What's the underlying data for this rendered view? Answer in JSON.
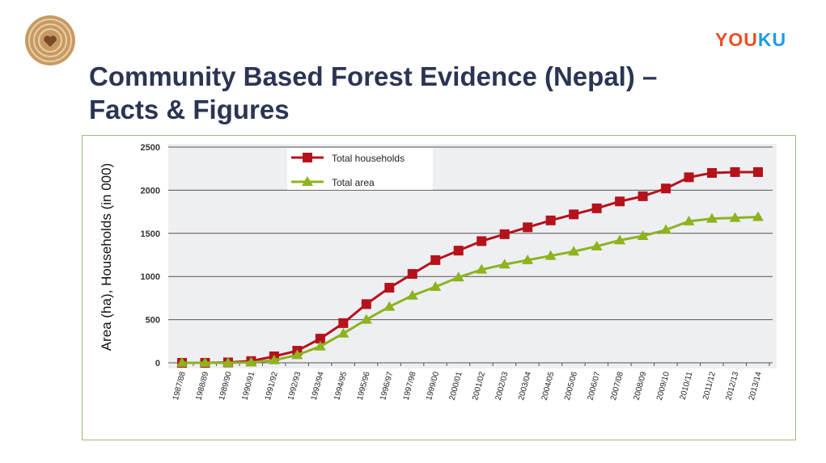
{
  "slide": {
    "title_line1": "Community Based Forest Evidence (Nepal) –",
    "title_line2": "Facts & Figures",
    "watermark": "YOUKU"
  },
  "chart_data": {
    "type": "line",
    "title": "",
    "xlabel": "",
    "ylabel": "Area (ha), Households (in 000)",
    "ylim": [
      0,
      2500
    ],
    "yticks": [
      0,
      500,
      1000,
      1500,
      2000,
      2500
    ],
    "grid": true,
    "legend_position": "top-center",
    "categories": [
      "1987/88",
      "1988/89",
      "1989/90",
      "1990/91",
      "1991/92",
      "1992/93",
      "1993/94",
      "1994/95",
      "1995/96",
      "1996/97",
      "1997/98",
      "1999/00",
      "2000/01",
      "2001/02",
      "2002/03",
      "2003/04",
      "2004/05",
      "2005/06",
      "2006/07",
      "2007/08",
      "2008/09",
      "2009/10",
      "2010/11",
      "2011/12",
      "2012/13",
      "2013/14"
    ],
    "series": [
      {
        "name": "Total households",
        "color": "#b5121b",
        "marker": "square",
        "values": [
          0,
          0,
          5,
          20,
          75,
          140,
          280,
          460,
          680,
          870,
          1030,
          1190,
          1300,
          1410,
          1490,
          1570,
          1650,
          1720,
          1790,
          1870,
          1930,
          2020,
          2150,
          2200,
          2210,
          2210
        ]
      },
      {
        "name": "Total area",
        "color": "#8db31f",
        "marker": "triangle",
        "values": [
          0,
          0,
          0,
          5,
          30,
          90,
          190,
          340,
          500,
          650,
          780,
          880,
          990,
          1080,
          1140,
          1190,
          1240,
          1290,
          1350,
          1420,
          1470,
          1540,
          1640,
          1670,
          1680,
          1690
        ]
      }
    ]
  }
}
